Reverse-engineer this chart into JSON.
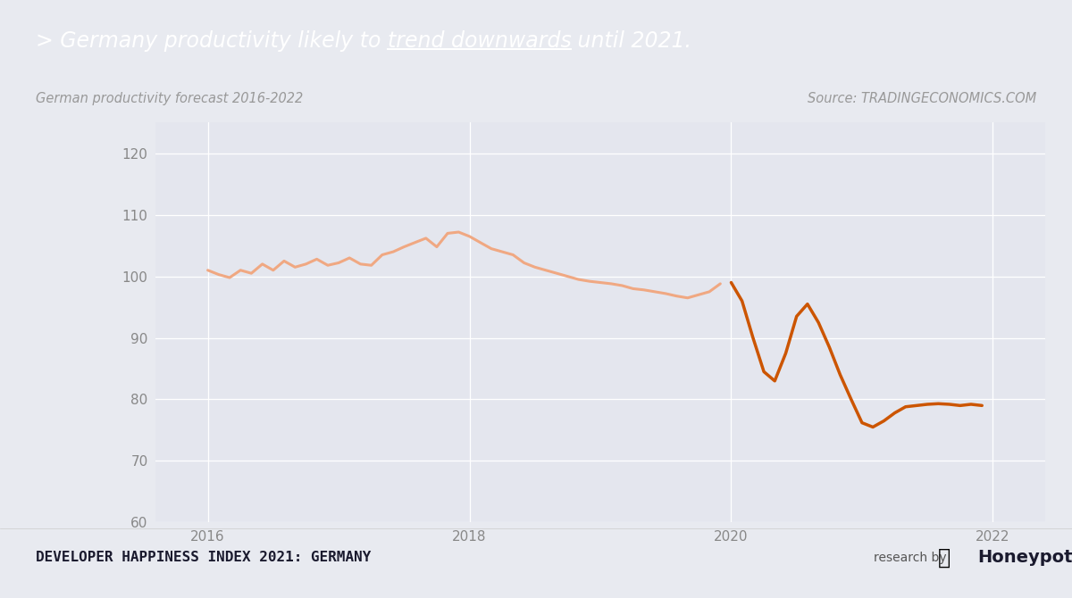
{
  "title_bar_color": "#1100dd",
  "background_color": "#e8eaf0",
  "chart_bg_color": "#e4e6ee",
  "subtitle_left": "German productivity forecast 2016-2022",
  "subtitle_right": "Source: TRADINGECONOMICS.COM",
  "footer_left": "DEVELOPER HAPPINESS INDEX 2021: GERMANY",
  "ylim": [
    60,
    125
  ],
  "yticks": [
    60,
    70,
    80,
    90,
    100,
    110,
    120
  ],
  "xlim_start": 2015.6,
  "xlim_end": 2022.4,
  "xticks": [
    2016,
    2018,
    2020,
    2022
  ],
  "line_color_hist": "#f0a882",
  "line_color_fore": "#cc5500",
  "transition_x": 2019.92,
  "x_values": [
    2016.0,
    2016.083,
    2016.167,
    2016.25,
    2016.333,
    2016.417,
    2016.5,
    2016.583,
    2016.667,
    2016.75,
    2016.833,
    2016.917,
    2017.0,
    2017.083,
    2017.167,
    2017.25,
    2017.333,
    2017.417,
    2017.5,
    2017.583,
    2017.667,
    2017.75,
    2017.833,
    2017.917,
    2018.0,
    2018.083,
    2018.167,
    2018.25,
    2018.333,
    2018.417,
    2018.5,
    2018.583,
    2018.667,
    2018.75,
    2018.833,
    2018.917,
    2019.0,
    2019.083,
    2019.167,
    2019.25,
    2019.333,
    2019.417,
    2019.5,
    2019.583,
    2019.667,
    2019.75,
    2019.833,
    2019.917,
    2020.0,
    2020.083,
    2020.167,
    2020.25,
    2020.333,
    2020.417,
    2020.5,
    2020.583,
    2020.667,
    2020.75,
    2020.833,
    2020.917,
    2021.0,
    2021.083,
    2021.167,
    2021.25,
    2021.333,
    2021.417,
    2021.5,
    2021.583,
    2021.667,
    2021.75,
    2021.833,
    2021.917
  ],
  "y_values": [
    101.0,
    100.3,
    99.8,
    101.0,
    100.5,
    102.0,
    101.0,
    102.5,
    101.5,
    102.0,
    102.8,
    101.8,
    102.2,
    103.0,
    102.0,
    101.8,
    103.5,
    104.0,
    104.8,
    105.5,
    106.2,
    104.8,
    107.0,
    107.2,
    106.5,
    105.5,
    104.5,
    104.0,
    103.5,
    102.2,
    101.5,
    101.0,
    100.5,
    100.0,
    99.5,
    99.2,
    99.0,
    98.8,
    98.5,
    98.0,
    97.8,
    97.5,
    97.2,
    96.8,
    96.5,
    97.0,
    97.5,
    98.8,
    99.0,
    96.0,
    90.0,
    84.5,
    83.0,
    87.5,
    93.5,
    95.5,
    92.5,
    88.5,
    84.0,
    80.0,
    76.2,
    75.5,
    76.5,
    77.8,
    78.8,
    79.0,
    79.2,
    79.3,
    79.2,
    79.0,
    79.2,
    79.0
  ]
}
